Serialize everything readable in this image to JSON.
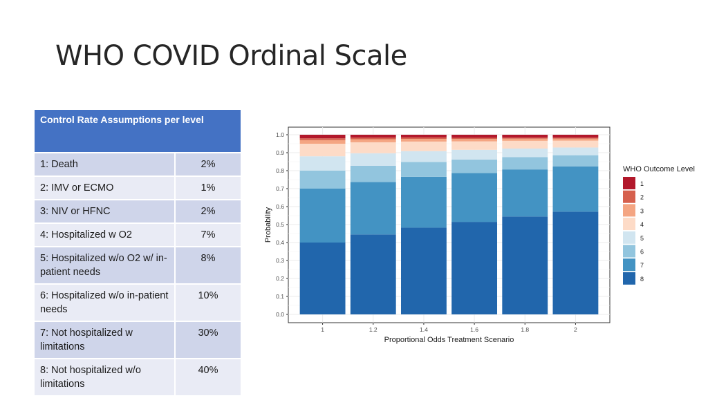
{
  "slide": {
    "title": "WHO COVID Ordinal Scale"
  },
  "table": {
    "header": "Control Rate Assumptions per level",
    "rows": [
      {
        "label": "1: Death",
        "value": "2%"
      },
      {
        "label": "2: IMV or ECMO",
        "value": "1%"
      },
      {
        "label": "3: NIV or HFNC",
        "value": "2%"
      },
      {
        "label": "4: Hospitalized w O2",
        "value": "7%"
      },
      {
        "label": "5: Hospitalized w/o O2 w/ in-patient needs",
        "value": "8%"
      },
      {
        "label": "6: Hospitalized w/o in-patient needs",
        "value": "10%"
      },
      {
        "label": "7: Not hospitalized w limitations",
        "value": "30%"
      },
      {
        "label": "8: Not hospitalized w/o limitations",
        "value": "40%"
      }
    ]
  },
  "chart_data": {
    "type": "bar",
    "stacked": true,
    "title": "",
    "xlabel": "Proportional Odds Treatment Scenario",
    "ylabel": "Probability",
    "ylim": [
      0,
      1
    ],
    "yticks": [
      "0.0",
      "0.1",
      "0.2",
      "0.3",
      "0.4",
      "0.5",
      "0.6",
      "0.7",
      "0.8",
      "0.9",
      "1.0"
    ],
    "categories": [
      "1",
      "1.2",
      "1.4",
      "1.6",
      "1.8",
      "2"
    ],
    "legend_title": "WHO Outcome Level",
    "legend_position": "right",
    "series": [
      {
        "name": "8",
        "color": "#2166ac",
        "values": [
          0.4,
          0.445,
          0.483,
          0.515,
          0.545,
          0.572
        ]
      },
      {
        "name": "7",
        "color": "#4393c3",
        "values": [
          0.3,
          0.292,
          0.283,
          0.272,
          0.262,
          0.252
        ]
      },
      {
        "name": "6",
        "color": "#92c5de",
        "values": [
          0.1,
          0.09,
          0.082,
          0.075,
          0.068,
          0.062
        ]
      },
      {
        "name": "5",
        "color": "#d1e5f0",
        "values": [
          0.08,
          0.07,
          0.061,
          0.054,
          0.048,
          0.043
        ]
      },
      {
        "name": "4",
        "color": "#fddbc7",
        "values": [
          0.07,
          0.061,
          0.053,
          0.047,
          0.043,
          0.038
        ]
      },
      {
        "name": "3",
        "color": "#f4a582",
        "values": [
          0.02,
          0.017,
          0.015,
          0.013,
          0.012,
          0.011
        ]
      },
      {
        "name": "2",
        "color": "#d6604d",
        "values": [
          0.01,
          0.009,
          0.008,
          0.007,
          0.006,
          0.006
        ]
      },
      {
        "name": "1",
        "color": "#b2182b",
        "values": [
          0.02,
          0.016,
          0.015,
          0.017,
          0.016,
          0.016
        ]
      }
    ]
  }
}
